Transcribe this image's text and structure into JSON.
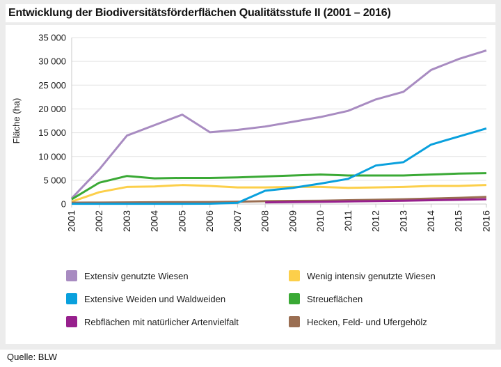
{
  "page": {
    "title": "Entwicklung der Biodiversitätsförderflächen Qualitätsstufe II (2001 – 2016)",
    "source": "Quelle: BLW"
  },
  "chart_data": {
    "type": "line",
    "title": "Entwicklung der Biodiversitätsförderflächen Qualitätsstufe II (2001 – 2016)",
    "xlabel": "",
    "ylabel": "Fläche (ha)",
    "ylim": [
      0,
      35000
    ],
    "grid": "horizontal",
    "legend_position": "bottom-two-columns",
    "x_labels": [
      "2001",
      "2002",
      "2003",
      "2004",
      "2005",
      "2006",
      "2007",
      "2008",
      "2009",
      "2010",
      "2011",
      "2012",
      "2013",
      "2014",
      "2015",
      "2016"
    ],
    "y_ticks": [
      "0",
      "5 000",
      "10 000",
      "15 000",
      "20 000",
      "25 000",
      "30 000",
      "35 000"
    ],
    "series": [
      {
        "name": "Extensiv genutzte Wiesen",
        "color": "#a88bc1",
        "values": [
          1200,
          7300,
          14400,
          16600,
          18800,
          15100,
          15600,
          16300,
          17300,
          18300,
          19600,
          22000,
          23600,
          28200,
          30500,
          32300
        ]
      },
      {
        "name": "Wenig intensiv genutzte Wiesen",
        "color": "#fccf4a",
        "values": [
          500,
          2500,
          3600,
          3700,
          4000,
          3800,
          3500,
          3500,
          3600,
          3600,
          3400,
          3500,
          3600,
          3800,
          3800,
          4000
        ]
      },
      {
        "name": "Streueflächen",
        "color": "#3aa935",
        "values": [
          1000,
          4500,
          5900,
          5400,
          5500,
          5500,
          5600,
          5800,
          6000,
          6200,
          6000,
          6000,
          6000,
          6200,
          6400,
          6500
        ]
      },
      {
        "name": "Hecken, Feld- und Ufergehölz",
        "color": "#9a6e52",
        "values": [
          300,
          320,
          350,
          380,
          400,
          430,
          500,
          600,
          650,
          700,
          800,
          900,
          1000,
          1150,
          1300,
          1500
        ]
      },
      {
        "name": "Rebflächen mit natürlicher Artenvielfalt",
        "color": "#97208d",
        "values": [
          null,
          null,
          null,
          null,
          null,
          null,
          null,
          350,
          420,
          480,
          550,
          620,
          700,
          800,
          900,
          1000
        ]
      },
      {
        "name": "Extensive Weiden und Waldweiden",
        "color": "#09a0dd",
        "values": [
          50,
          50,
          50,
          60,
          60,
          80,
          250,
          2800,
          3400,
          4300,
          5300,
          8100,
          8800,
          12500,
          14200,
          15900
        ]
      }
    ],
    "legend_columns": [
      [
        0,
        5,
        4
      ],
      [
        1,
        2,
        3
      ]
    ],
    "colors": {
      "background": "#ececec",
      "panel": "#ffffff",
      "gridline": "#e3e3e3",
      "axis": "#c9c9c9",
      "text": "#1a1a1a"
    }
  }
}
